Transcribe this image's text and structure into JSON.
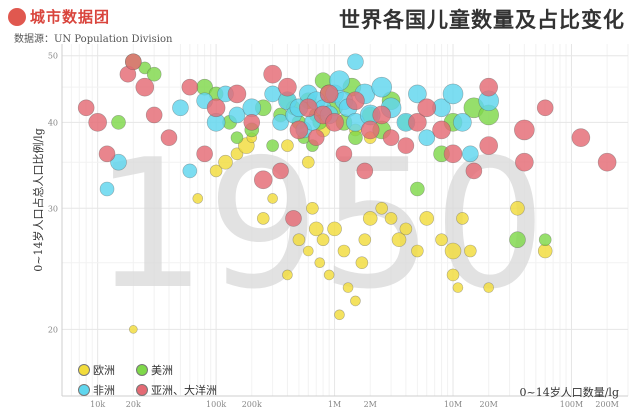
{
  "header": {
    "brand": "城市数据团",
    "title": "世界各国儿童数量及占比变化",
    "source": "数据源：UN Population Division"
  },
  "chart_data": {
    "type": "scatter",
    "year_watermark": "1950",
    "title": "世界各国儿童数量及占比变化",
    "xlabel": "0~14岁人口数量/lg",
    "ylabel": "0~14岁人口占总人口比例/lg",
    "xscale": "log",
    "yscale": "log",
    "xlim": [
      5000,
      300000000
    ],
    "ylim": [
      16,
      52
    ],
    "x_ticks": [
      {
        "v": 10000,
        "label": "10k"
      },
      {
        "v": 20000,
        "label": "20k"
      },
      {
        "v": 100000,
        "label": "100k"
      },
      {
        "v": 200000,
        "label": "200k"
      },
      {
        "v": 1000000,
        "label": "1M"
      },
      {
        "v": 2000000,
        "label": "2M"
      },
      {
        "v": 10000000,
        "label": "10M"
      },
      {
        "v": 20000000,
        "label": "20M"
      },
      {
        "v": 100000000,
        "label": "100M"
      },
      {
        "v": 200000000,
        "label": "200M"
      }
    ],
    "y_ticks": [
      {
        "v": 20,
        "label": "20"
      },
      {
        "v": 30,
        "label": "30"
      },
      {
        "v": 40,
        "label": "40"
      },
      {
        "v": 50,
        "label": "50"
      }
    ],
    "grid": true,
    "legend_position": "bottom-left",
    "series": [
      {
        "name": "欧洲",
        "color": "#f2dc3c",
        "points": [
          [
            20000,
            20
          ],
          [
            70000,
            31
          ],
          [
            100000,
            34
          ],
          [
            120000,
            35
          ],
          [
            150000,
            36
          ],
          [
            180000,
            37
          ],
          [
            200000,
            38
          ],
          [
            250000,
            29
          ],
          [
            300000,
            31
          ],
          [
            400000,
            24
          ],
          [
            500000,
            27
          ],
          [
            600000,
            26
          ],
          [
            650000,
            30
          ],
          [
            700000,
            28
          ],
          [
            750000,
            25
          ],
          [
            800000,
            27
          ],
          [
            900000,
            24
          ],
          [
            1000000,
            28
          ],
          [
            1200000,
            26
          ],
          [
            1100000,
            21
          ],
          [
            1300000,
            23
          ],
          [
            1500000,
            22
          ],
          [
            1700000,
            25
          ],
          [
            1800000,
            27
          ],
          [
            2000000,
            29
          ],
          [
            2500000,
            30
          ],
          [
            3000000,
            29
          ],
          [
            3500000,
            27
          ],
          [
            4000000,
            28
          ],
          [
            5000000,
            26
          ],
          [
            6000000,
            29
          ],
          [
            8000000,
            27
          ],
          [
            10000000,
            26
          ],
          [
            11000000,
            23
          ],
          [
            14000000,
            26
          ],
          [
            20000000,
            23
          ],
          [
            10000000,
            24
          ],
          [
            12000000,
            29
          ],
          [
            35000000,
            30
          ],
          [
            60000000,
            26
          ],
          [
            1500000,
            39
          ],
          [
            2000000,
            38
          ],
          [
            800000,
            39
          ],
          [
            600000,
            35
          ],
          [
            400000,
            37
          ]
        ],
        "sizes": [
          4,
          5,
          6,
          7,
          6,
          8,
          5,
          6,
          5,
          5,
          6,
          5,
          6,
          7,
          5,
          6,
          5,
          7,
          6,
          5,
          5,
          5,
          6,
          6,
          7,
          6,
          6,
          7,
          6,
          6,
          7,
          6,
          8,
          5,
          6,
          5,
          6,
          6,
          7,
          7,
          6,
          6,
          7,
          6,
          6
        ]
      },
      {
        "name": "美洲",
        "color": "#7fd84a",
        "points": [
          [
            20000,
            49
          ],
          [
            25000,
            48
          ],
          [
            15000,
            40
          ],
          [
            30000,
            47
          ],
          [
            80000,
            45
          ],
          [
            100000,
            44
          ],
          [
            130000,
            40
          ],
          [
            150000,
            38
          ],
          [
            200000,
            39
          ],
          [
            250000,
            42
          ],
          [
            300000,
            37
          ],
          [
            350000,
            41
          ],
          [
            400000,
            43
          ],
          [
            450000,
            42
          ],
          [
            500000,
            40
          ],
          [
            550000,
            38
          ],
          [
            600000,
            43
          ],
          [
            650000,
            37
          ],
          [
            700000,
            41
          ],
          [
            750000,
            40
          ],
          [
            800000,
            46
          ],
          [
            900000,
            44
          ],
          [
            1000000,
            42
          ],
          [
            1200000,
            40
          ],
          [
            1400000,
            45
          ],
          [
            1500000,
            38
          ],
          [
            2000000,
            41
          ],
          [
            2500000,
            39
          ],
          [
            3000000,
            43
          ],
          [
            4000000,
            40
          ],
          [
            5000000,
            32
          ],
          [
            8000000,
            36
          ],
          [
            10000000,
            40
          ],
          [
            15000000,
            42
          ],
          [
            20000000,
            41
          ],
          [
            35000000,
            27
          ],
          [
            60000000,
            27
          ]
        ],
        "sizes": [
          8,
          6,
          7,
          7,
          8,
          7,
          7,
          6,
          7,
          8,
          6,
          7,
          8,
          7,
          7,
          6,
          8,
          6,
          7,
          7,
          8,
          9,
          8,
          8,
          9,
          7,
          8,
          9,
          9,
          8,
          7,
          8,
          9,
          10,
          10,
          8,
          6
        ]
      },
      {
        "name": "非洲",
        "color": "#5fd6ee",
        "points": [
          [
            12000,
            32
          ],
          [
            15000,
            35
          ],
          [
            50000,
            42
          ],
          [
            60000,
            34
          ],
          [
            80000,
            43
          ],
          [
            100000,
            40
          ],
          [
            120000,
            44
          ],
          [
            150000,
            41
          ],
          [
            200000,
            42
          ],
          [
            300000,
            44
          ],
          [
            350000,
            40
          ],
          [
            400000,
            43
          ],
          [
            450000,
            41
          ],
          [
            500000,
            42
          ],
          [
            550000,
            39
          ],
          [
            600000,
            44
          ],
          [
            650000,
            40
          ],
          [
            700000,
            43
          ],
          [
            800000,
            42
          ],
          [
            900000,
            41
          ],
          [
            1000000,
            44
          ],
          [
            1100000,
            46
          ],
          [
            1200000,
            43
          ],
          [
            1300000,
            42
          ],
          [
            1500000,
            40
          ],
          [
            1800000,
            44
          ],
          [
            2000000,
            41
          ],
          [
            2500000,
            45
          ],
          [
            3000000,
            42
          ],
          [
            4000000,
            40
          ],
          [
            5000000,
            44
          ],
          [
            6000000,
            38
          ],
          [
            8000000,
            42
          ],
          [
            10000000,
            44
          ],
          [
            12000000,
            40
          ],
          [
            14000000,
            36
          ],
          [
            20000000,
            43
          ],
          [
            1500000,
            49
          ]
        ],
        "sizes": [
          7,
          8,
          8,
          7,
          8,
          9,
          8,
          8,
          9,
          8,
          8,
          9,
          8,
          9,
          8,
          9,
          8,
          9,
          8,
          9,
          9,
          10,
          9,
          9,
          9,
          10,
          10,
          10,
          10,
          9,
          9,
          8,
          9,
          10,
          9,
          8,
          10,
          8
        ]
      },
      {
        "name": "亚洲、大洋洲",
        "color": "#e46a74",
        "points": [
          [
            8000,
            42
          ],
          [
            10000,
            40
          ],
          [
            12000,
            36
          ],
          [
            18000,
            47
          ],
          [
            20000,
            49
          ],
          [
            25000,
            45
          ],
          [
            30000,
            41
          ],
          [
            40000,
            38
          ],
          [
            60000,
            45
          ],
          [
            80000,
            36
          ],
          [
            100000,
            42
          ],
          [
            150000,
            44
          ],
          [
            200000,
            40
          ],
          [
            250000,
            33
          ],
          [
            300000,
            47
          ],
          [
            350000,
            34
          ],
          [
            400000,
            45
          ],
          [
            450000,
            29
          ],
          [
            500000,
            39
          ],
          [
            600000,
            42
          ],
          [
            700000,
            38
          ],
          [
            800000,
            41
          ],
          [
            900000,
            44
          ],
          [
            1000000,
            40
          ],
          [
            1200000,
            36
          ],
          [
            1500000,
            43
          ],
          [
            1800000,
            34
          ],
          [
            2000000,
            39
          ],
          [
            2500000,
            41
          ],
          [
            3000000,
            38
          ],
          [
            4000000,
            37
          ],
          [
            5000000,
            40
          ],
          [
            6000000,
            42
          ],
          [
            8000000,
            39
          ],
          [
            10000000,
            36
          ],
          [
            15000000,
            34
          ],
          [
            20000000,
            37
          ],
          [
            40000000,
            35
          ],
          [
            40000000,
            39
          ],
          [
            120000000,
            38
          ],
          [
            200000000,
            35
          ],
          [
            20000000,
            45
          ],
          [
            60000000,
            42
          ]
        ],
        "sizes": [
          8,
          9,
          8,
          8,
          8,
          9,
          8,
          8,
          8,
          8,
          9,
          9,
          8,
          9,
          9,
          8,
          9,
          8,
          9,
          9,
          8,
          9,
          9,
          9,
          8,
          9,
          8,
          9,
          9,
          8,
          8,
          9,
          9,
          9,
          9,
          8,
          9,
          9,
          10,
          9,
          9,
          9,
          8
        ]
      }
    ]
  }
}
